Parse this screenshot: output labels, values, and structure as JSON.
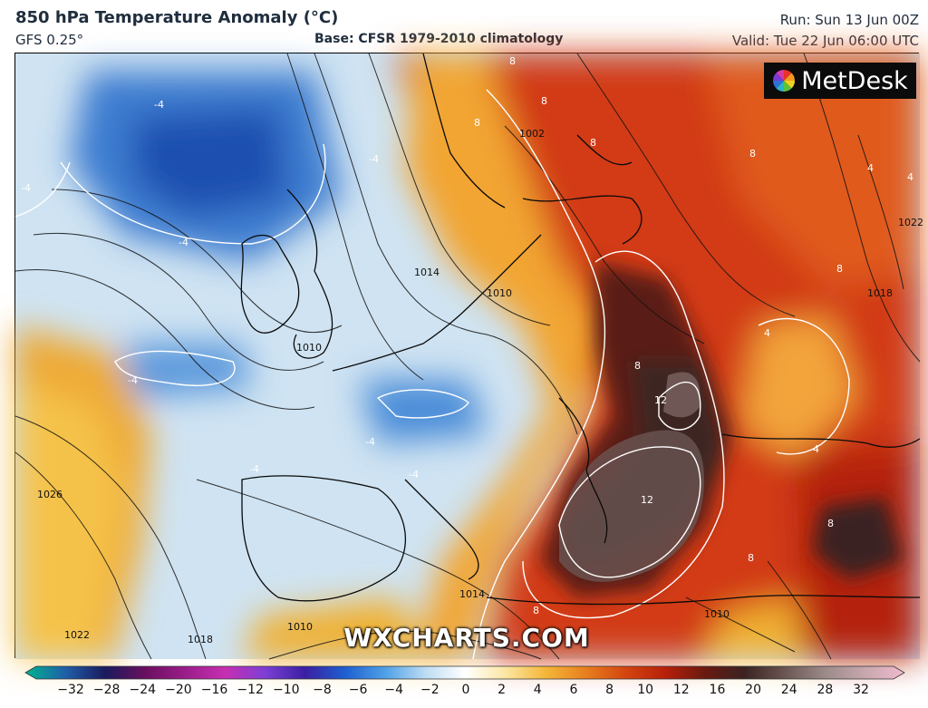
{
  "header": {
    "title": "850 hPa Temperature Anomaly (°C)",
    "model": "GFS 0.25°",
    "base": "Base: CFSR 1979-2010 climatology",
    "run": "Run: Sun 13 Jun 00Z",
    "valid": "Valid: Tue 22 Jun 06:00 UTC"
  },
  "logo": {
    "text": "MetDesk",
    "icon": "metdesk-pinwheel-icon"
  },
  "watermark": "WXCHARTS.COM",
  "map": {
    "isobar_labels": [
      "1002",
      "1010",
      "1010",
      "1010",
      "1010",
      "1014",
      "1014",
      "1018",
      "1018",
      "1022",
      "1022",
      "1026"
    ],
    "anomaly_labels": [
      "-4",
      "-4",
      "-4",
      "-4",
      "-4",
      "-4",
      "-4",
      "-4",
      "4",
      "4",
      "4",
      "4",
      "8",
      "8",
      "8",
      "8",
      "8",
      "8",
      "8",
      "8",
      "8",
      "8",
      "12",
      "12"
    ]
  },
  "colorbar": {
    "ticks": [
      "−32",
      "−28",
      "−24",
      "−20",
      "−16",
      "−12",
      "−10",
      "−8",
      "−6",
      "−4",
      "−2",
      "0",
      "2",
      "4",
      "6",
      "8",
      "10",
      "12",
      "16",
      "20",
      "24",
      "28",
      "32"
    ],
    "colors": [
      "#00b38f",
      "#1f5fa8",
      "#1a1a5e",
      "#6a0f5f",
      "#9b1d8a",
      "#c62fb1",
      "#7d3fd6",
      "#3a1fa3",
      "#1e5fd0",
      "#4ea0e6",
      "#bcdcf3",
      "#ffffff",
      "#fbe7a4",
      "#f4b73a",
      "#e8801f",
      "#d4460f",
      "#b8200a",
      "#6a1a10",
      "#3a2322",
      "#6b5552",
      "#9a8a88",
      "#c7a7ad",
      "#f0b9cf"
    ]
  }
}
